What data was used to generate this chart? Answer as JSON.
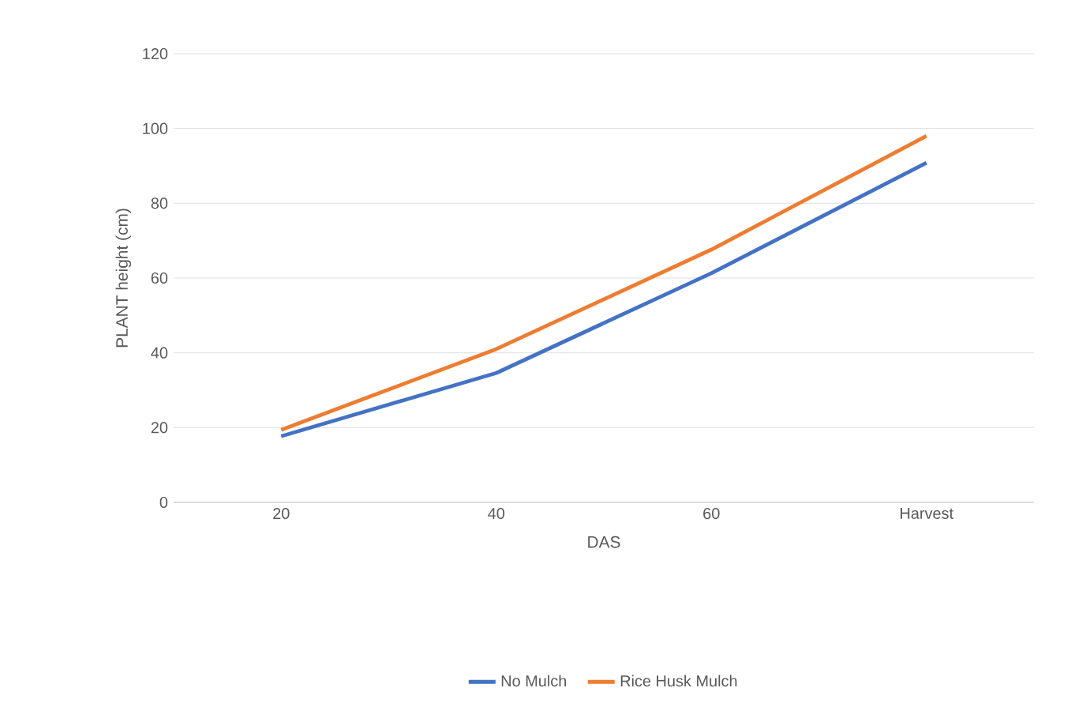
{
  "chart_data": {
    "type": "line",
    "xlabel": "DAS",
    "ylabel": "PLANT  height (cm)",
    "categories": [
      "20",
      "40",
      "60",
      "Harvest"
    ],
    "series": [
      {
        "name": "No Mulch",
        "color": "#4472c4",
        "values": [
          17.7,
          34.6,
          61.3,
          90.8
        ]
      },
      {
        "name": "Rice Husk Mulch",
        "color": "#ed7d31",
        "values": [
          19.4,
          41,
          67.6,
          98
        ]
      }
    ],
    "ylim": [
      0,
      120
    ],
    "yticks": [
      0,
      20,
      40,
      60,
      80,
      100,
      120
    ],
    "grid": "y",
    "legend": "bottom",
    "marker": "none",
    "line_style": "solid"
  }
}
